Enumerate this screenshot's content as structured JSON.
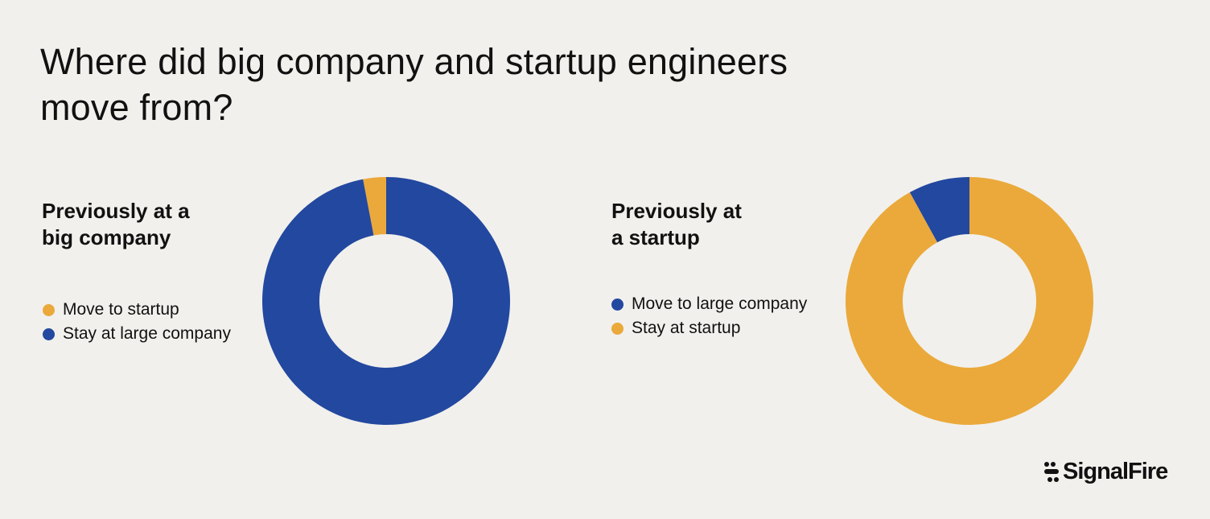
{
  "title_line1": "Where did big company and startup engineers",
  "title_line2": "move from?",
  "logo_text": "SignalFire",
  "colors": {
    "blue": "#23489f",
    "yellow": "#eaa93a",
    "background": "#f1f0ed"
  },
  "chart_data": [
    {
      "type": "pie",
      "donut": true,
      "title_line1": "Previously at a",
      "title_line2": "big company",
      "legend_placement": "left",
      "slices": [
        {
          "label": "Move to startup",
          "value": 3,
          "color": "#eaa93a"
        },
        {
          "label": "Stay at large company",
          "value": 97,
          "color": "#23489f"
        }
      ]
    },
    {
      "type": "pie",
      "donut": true,
      "title_line1": "Previously at",
      "title_line2": "a startup",
      "legend_placement": "left",
      "slices": [
        {
          "label": "Move to large company",
          "value": 8,
          "color": "#23489f"
        },
        {
          "label": "Stay at startup",
          "value": 92,
          "color": "#eaa93a"
        }
      ]
    }
  ]
}
